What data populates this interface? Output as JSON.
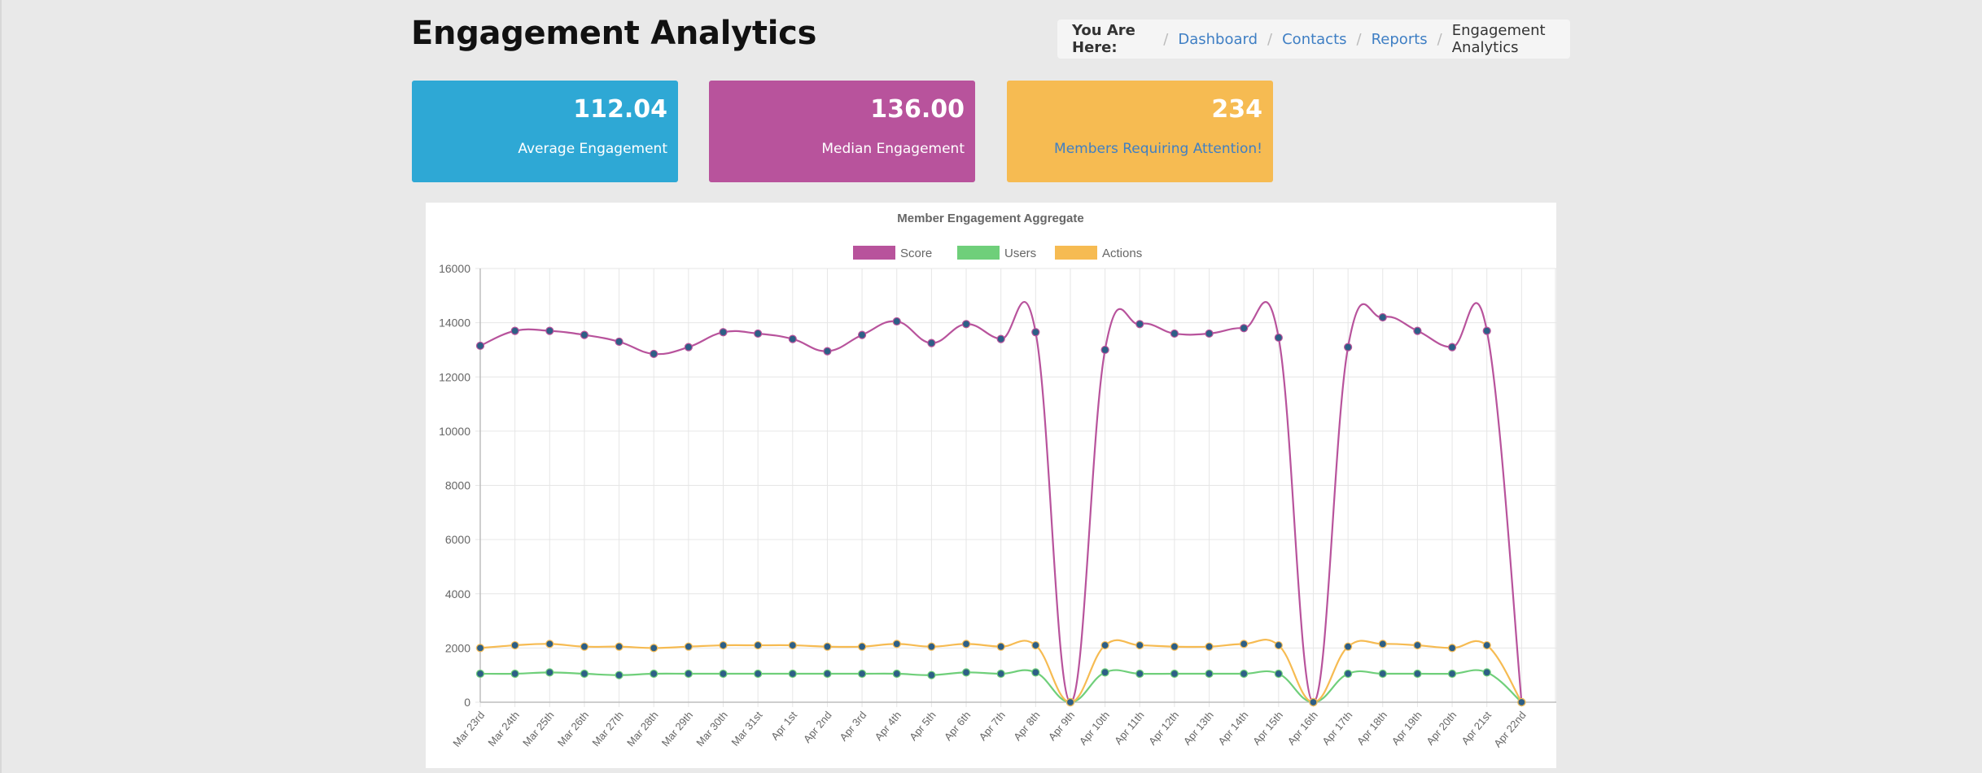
{
  "header": {
    "title": "Engagement Analytics"
  },
  "breadcrumb": {
    "lead": "You Are Here:",
    "items": [
      {
        "label": "Dashboard",
        "link": true
      },
      {
        "label": "Contacts",
        "link": true
      },
      {
        "label": "Reports",
        "link": true
      },
      {
        "label": "Engagement Analytics",
        "link": false
      }
    ]
  },
  "stats": [
    {
      "value": "112.04",
      "label": "Average Engagement",
      "color": "#2ea8d5"
    },
    {
      "value": "136.00",
      "label": "Median Engagement",
      "color": "#b8539c"
    },
    {
      "value": "234",
      "label": "Members Requiring Attention!",
      "color": "#f6bb52"
    }
  ],
  "chart_data": {
    "type": "line",
    "title": "Member Engagement Aggregate",
    "legend_position": "top",
    "grid": true,
    "ylim": [
      0,
      16000
    ],
    "y_ticks": [
      0,
      2000,
      4000,
      6000,
      8000,
      10000,
      12000,
      14000,
      16000
    ],
    "categories": [
      "Mar 23rd",
      "Mar 24th",
      "Mar 25th",
      "Mar 26th",
      "Mar 27th",
      "Mar 28th",
      "Mar 29th",
      "Mar 30th",
      "Mar 31st",
      "Apr 1st",
      "Apr 2nd",
      "Apr 3rd",
      "Apr 4th",
      "Apr 5th",
      "Apr 6th",
      "Apr 7th",
      "Apr 8th",
      "Apr 9th",
      "Apr 10th",
      "Apr 11th",
      "Apr 12th",
      "Apr 13th",
      "Apr 14th",
      "Apr 15th",
      "Apr 16th",
      "Apr 17th",
      "Apr 18th",
      "Apr 19th",
      "Apr 20th",
      "Apr 21st",
      "Apr 22nd"
    ],
    "series": [
      {
        "name": "Score",
        "color": "#b8539c",
        "values": [
          13150,
          13700,
          13700,
          13550,
          13300,
          12850,
          13100,
          13650,
          13600,
          13400,
          12950,
          13550,
          14050,
          13250,
          13950,
          13400,
          13650,
          0,
          13000,
          13950,
          13600,
          13600,
          13800,
          13450,
          0,
          13100,
          14200,
          13700,
          13100,
          13700,
          0
        ]
      },
      {
        "name": "Users",
        "color": "#6fcf7a",
        "values": [
          1050,
          1050,
          1100,
          1050,
          1000,
          1050,
          1050,
          1050,
          1050,
          1050,
          1050,
          1050,
          1050,
          1000,
          1100,
          1050,
          1100,
          0,
          1100,
          1050,
          1050,
          1050,
          1050,
          1050,
          0,
          1050,
          1050,
          1050,
          1050,
          1100,
          0
        ]
      },
      {
        "name": "Actions",
        "color": "#f6bb52",
        "values": [
          2000,
          2100,
          2150,
          2050,
          2050,
          2000,
          2050,
          2100,
          2100,
          2100,
          2050,
          2050,
          2150,
          2050,
          2150,
          2050,
          2100,
          0,
          2100,
          2100,
          2050,
          2050,
          2150,
          2100,
          0,
          2050,
          2150,
          2100,
          2000,
          2100,
          0
        ]
      }
    ]
  }
}
